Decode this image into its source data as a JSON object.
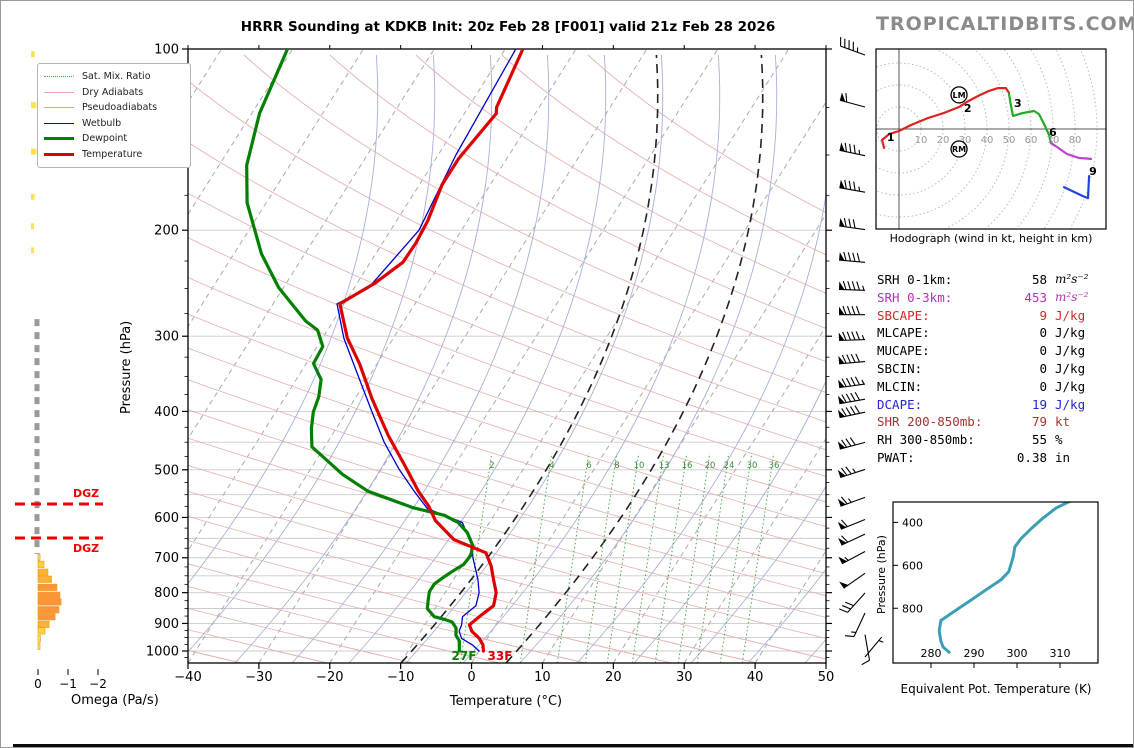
{
  "header": {
    "title": "HRRR Sounding at KDKB Init: 20z Feb 28 [F001] valid 21z Feb 28 2026",
    "watermark": "TROPICALTIDBITS.COM"
  },
  "legend": {
    "items": [
      {
        "label": "Sat. Mix. Ratio",
        "color": "#44aa44",
        "style": "dotted",
        "weight": 1
      },
      {
        "label": "Dry Adiabats",
        "color": "#e8a8a8",
        "style": "solid",
        "weight": 1
      },
      {
        "label": "Pseudoadiabats",
        "color": "#a8aedd",
        "style": "solid",
        "weight": 1
      },
      {
        "label": "Wetbulb",
        "color": "#0000cc",
        "style": "solid",
        "weight": 1.5
      },
      {
        "label": "Dewpoint",
        "color": "#008000",
        "style": "solid",
        "weight": 3.5
      },
      {
        "label": "Temperature",
        "color": "#dd0000",
        "style": "solid",
        "weight": 3.5
      }
    ]
  },
  "stats": {
    "rows": [
      {
        "label": "SRH 0-1km:",
        "value": "58",
        "unit": "m²s⁻²",
        "color": "#000000",
        "unit_italic": true
      },
      {
        "label": "SRH 0-3km:",
        "value": "453",
        "unit": "m²s⁻²",
        "color": "#b233b2",
        "unit_italic": true
      },
      {
        "label": "SBCAPE:",
        "value": "9",
        "unit": "J/kg",
        "color": "#d42727",
        "unit_italic": false
      },
      {
        "label": "MLCAPE:",
        "value": "0",
        "unit": "J/kg",
        "color": "#000000",
        "unit_italic": false
      },
      {
        "label": "MUCAPE:",
        "value": "0",
        "unit": "J/kg",
        "color": "#000000",
        "unit_italic": false
      },
      {
        "label": "SBCIN:",
        "value": "0",
        "unit": "J/kg",
        "color": "#000000",
        "unit_italic": false
      },
      {
        "label": "MLCIN:",
        "value": "0",
        "unit": "J/kg",
        "color": "#000000",
        "unit_italic": false
      },
      {
        "label": "DCAPE:",
        "value": "19",
        "unit": "J/kg",
        "color": "#2626cc",
        "unit_italic": false
      },
      {
        "label": "SHR 200-850mb:",
        "value": "79",
        "unit": "kt",
        "color": "#a23535",
        "unit_italic": false
      },
      {
        "label": "RH 300-850mb:",
        "value": "55",
        "unit": "%",
        "color": "#000000",
        "unit_italic": false
      },
      {
        "label": "PWAT:",
        "value": "0.38",
        "unit": "in",
        "color": "#000000",
        "unit_italic": false
      }
    ]
  },
  "chart_data": [
    {
      "id": "skewt",
      "type": "line",
      "title": "HRRR Sounding at KDKB Init: 20z Feb 28 [F001] valid 21z Feb 28 2026",
      "xlabel": "Temperature (°C)",
      "ylabel": "Pressure (hPa)",
      "xlim": [
        -40,
        50
      ],
      "x_ticks": [
        -40,
        -30,
        -20,
        -10,
        0,
        10,
        20,
        30,
        40,
        50
      ],
      "p_ticks": [
        100,
        200,
        300,
        400,
        500,
        600,
        700,
        800,
        900,
        1000
      ],
      "p_range": [
        100,
        1050
      ],
      "grid": true,
      "mixing_ratio_labels": [
        2,
        4,
        6,
        8,
        10,
        13,
        16,
        20,
        24,
        30,
        36
      ],
      "surface_temp_label": "33F",
      "surface_dewpoint_label": "27F",
      "series": [
        {
          "name": "Temperature",
          "color": "#dd0000",
          "width": 3.2,
          "points_p_T": [
            [
              100,
              -47.5
            ],
            [
              125,
              -46.0
            ],
            [
              128,
              -45.5
            ],
            [
              152,
              -46.8
            ],
            [
              168,
              -46.8
            ],
            [
              193,
              -45.6
            ],
            [
              210,
              -45.3
            ],
            [
              226,
              -45.4
            ],
            [
              245,
              -47.5
            ],
            [
              265,
              -50.6
            ],
            [
              302,
              -46.5
            ],
            [
              334,
              -42.4
            ],
            [
              381,
              -37.6
            ],
            [
              440,
              -31.9
            ],
            [
              492,
              -27.0
            ],
            [
              543,
              -22.8
            ],
            [
              575,
              -20.0
            ],
            [
              607,
              -17.8
            ],
            [
              653,
              -13.5
            ],
            [
              687,
              -7.8
            ],
            [
              722,
              -5.9
            ],
            [
              762,
              -4.3
            ],
            [
              800,
              -2.8
            ],
            [
              841,
              -2.0
            ],
            [
              872,
              -2.9
            ],
            [
              905,
              -3.7
            ],
            [
              927,
              -2.8
            ],
            [
              953,
              -1.1
            ],
            [
              977,
              0.0
            ],
            [
              1000,
              0.6
            ]
          ]
        },
        {
          "name": "Dewpoint",
          "color": "#008000",
          "width": 3.2,
          "points_p_T": [
            [
              100,
              -80.7
            ],
            [
              128,
              -78.9
            ],
            [
              156,
              -76.1
            ],
            [
              180,
              -72.7
            ],
            [
              219,
              -66.1
            ],
            [
              249,
              -60.7
            ],
            [
              283,
              -53.9
            ],
            [
              293,
              -51.4
            ],
            [
              312,
              -49.2
            ],
            [
              333,
              -49.0
            ],
            [
              354,
              -46.5
            ],
            [
              378,
              -45.3
            ],
            [
              401,
              -44.7
            ],
            [
              427,
              -43.5
            ],
            [
              458,
              -41.8
            ],
            [
              509,
              -35.0
            ],
            [
              543,
              -29.9
            ],
            [
              578,
              -22.1
            ],
            [
              595,
              -17.0
            ],
            [
              612,
              -14.4
            ],
            [
              636,
              -12.2
            ],
            [
              668,
              -10.3
            ],
            [
              694,
              -9.7
            ],
            [
              718,
              -9.9
            ],
            [
              740,
              -11.0
            ],
            [
              760,
              -11.8
            ],
            [
              774,
              -12.3
            ],
            [
              797,
              -12.3
            ],
            [
              820,
              -11.8
            ],
            [
              850,
              -11.1
            ],
            [
              877,
              -9.4
            ],
            [
              886,
              -7.7
            ],
            [
              895,
              -6.4
            ],
            [
              916,
              -5.3
            ],
            [
              941,
              -4.7
            ],
            [
              962,
              -3.7
            ],
            [
              1000,
              -2.8
            ]
          ]
        },
        {
          "name": "Wetbulb",
          "color": "#0000cc",
          "width": 1.3,
          "points_p_T": [
            [
              100,
              -48.5
            ],
            [
              150,
              -47.5
            ],
            [
              200,
              -46.0
            ],
            [
              250,
              -48.0
            ],
            [
              265,
              -51.0
            ],
            [
              302,
              -47.0
            ],
            [
              350,
              -41.5
            ],
            [
              400,
              -36.5
            ],
            [
              450,
              -32.0
            ],
            [
              500,
              -27.4
            ],
            [
              543,
              -23.4
            ],
            [
              580,
              -20.0
            ],
            [
              612,
              -13.8
            ],
            [
              650,
              -11.5
            ],
            [
              668,
              -10.4
            ],
            [
              700,
              -9.2
            ],
            [
              722,
              -8.2
            ],
            [
              762,
              -6.5
            ],
            [
              800,
              -5.2
            ],
            [
              841,
              -4.5
            ],
            [
              877,
              -5.4
            ],
            [
              905,
              -4.8
            ],
            [
              927,
              -4.6
            ],
            [
              953,
              -3.6
            ],
            [
              977,
              -1.5
            ],
            [
              1000,
              0.0
            ]
          ]
        }
      ],
      "wind_barbs_p_kt_dir": [
        [
          100,
          45,
          290
        ],
        [
          122,
          60,
          285
        ],
        [
          147,
          85,
          282
        ],
        [
          169,
          85,
          280
        ],
        [
          195,
          80,
          278
        ],
        [
          221,
          90,
          275
        ],
        [
          246,
          95,
          272
        ],
        [
          270,
          90,
          270
        ],
        [
          297,
          95,
          268
        ],
        [
          323,
          90,
          265
        ],
        [
          352,
          95,
          262
        ],
        [
          373,
          90,
          260
        ],
        [
          392,
          90,
          258
        ],
        [
          440,
          80,
          255
        ],
        [
          488,
          75,
          252
        ],
        [
          543,
          65,
          250
        ],
        [
          591,
          60,
          248
        ],
        [
          625,
          60,
          245
        ],
        [
          668,
          55,
          242
        ],
        [
          726,
          50,
          235
        ],
        [
          783,
          30,
          222
        ],
        [
          845,
          15,
          205
        ],
        [
          918,
          10,
          170
        ],
        [
          1000,
          5,
          40
        ]
      ]
    },
    {
      "id": "hodograph",
      "type": "line",
      "caption": "Hodograph (wind in kt, height in km)",
      "ring_interval_kt": 10,
      "ring_labels": [
        10,
        20,
        30,
        40,
        50,
        60,
        70,
        80
      ],
      "height_labels": [
        {
          "text": "1",
          "u": -5.5,
          "v": -3.6
        },
        {
          "text": "2",
          "u": 29.5,
          "v": 9.5
        },
        {
          "text": "3",
          "u": 52.3,
          "v": 11.8
        },
        {
          "text": "6",
          "u": 68.2,
          "v": -1.4
        },
        {
          "text": "9",
          "u": 86.4,
          "v": -19.1
        }
      ],
      "markers": [
        {
          "text": "LM",
          "u": 27.3,
          "v": 15.5
        },
        {
          "text": "RM",
          "u": 27.3,
          "v": -9.1
        }
      ],
      "segments": [
        {
          "km": "0-3",
          "color": "#dd2222",
          "points_uv": [
            [
              -6.8,
              -8.6
            ],
            [
              -7.7,
              -5.0
            ],
            [
              -4.5,
              -2.3
            ],
            [
              0,
              -0.9
            ],
            [
              5.5,
              1.8
            ],
            [
              13.2,
              5.0
            ],
            [
              20.5,
              7.3
            ],
            [
              27.3,
              10.0
            ],
            [
              30.9,
              12.3
            ],
            [
              35.9,
              15.0
            ],
            [
              40.9,
              17.3
            ],
            [
              45.0,
              18.6
            ],
            [
              48.6,
              18.6
            ],
            [
              50.0,
              16.4
            ]
          ]
        },
        {
          "km": "3-6",
          "color": "#22aa22",
          "points_uv": [
            [
              50.0,
              15.9
            ],
            [
              50.9,
              10.5
            ],
            [
              51.8,
              5.9
            ],
            [
              56.4,
              7.3
            ],
            [
              61.4,
              8.2
            ],
            [
              63.6,
              6.8
            ],
            [
              65.9,
              2.3
            ],
            [
              68.2,
              -2.7
            ],
            [
              69.1,
              -6.4
            ]
          ]
        },
        {
          "km": "6-9",
          "color": "#bb44cc",
          "points_uv": [
            [
              69.1,
              -6.4
            ],
            [
              71.8,
              -8.2
            ],
            [
              76.4,
              -11.4
            ],
            [
              81.8,
              -13.2
            ],
            [
              87.3,
              -13.6
            ]
          ]
        },
        {
          "km": "9-12",
          "color": "#2244dd",
          "points_uv": [
            [
              75.0,
              -26.4
            ],
            [
              83.6,
              -30.5
            ],
            [
              85.9,
              -31.4
            ],
            [
              86.4,
              -21.4
            ]
          ]
        }
      ]
    },
    {
      "id": "theta_e",
      "type": "line",
      "xlabel": "Equivalent Pot. Temperature (K)",
      "ylabel": "Pressure (hPa)",
      "x_ticks": [
        280,
        290,
        300,
        310
      ],
      "p_ticks": [
        400,
        600,
        800
      ],
      "p_range": [
        305,
        1055
      ],
      "color": "#3a9fb5",
      "points_p_K": [
        [
          1005,
          284.2
        ],
        [
          980,
          282.8
        ],
        [
          952,
          282.3
        ],
        [
          905,
          281.9
        ],
        [
          857,
          282.3
        ],
        [
          819,
          285.1
        ],
        [
          762,
          289.3
        ],
        [
          714,
          292.8
        ],
        [
          667,
          296.3
        ],
        [
          629,
          298.1
        ],
        [
          595,
          298.6
        ],
        [
          562,
          299.1
        ],
        [
          514,
          299.5
        ],
        [
          476,
          300.9
        ],
        [
          429,
          303.3
        ],
        [
          381,
          306.0
        ],
        [
          333,
          309.1
        ],
        [
          290,
          313.5
        ]
      ]
    },
    {
      "id": "omega",
      "type": "bar",
      "xlabel": "Omega (Pa/s)",
      "x_ticks": [
        0,
        -1,
        -2
      ],
      "dgz_label": "DGZ",
      "dgz_pressures": [
        570,
        649
      ],
      "near_zero_band_p": [
        281,
        690
      ],
      "bars_p_val": [
        [
          699,
          -0.05
        ],
        [
          718,
          -0.2
        ],
        [
          740,
          -0.33
        ],
        [
          760,
          -0.45
        ],
        [
          784,
          -0.63
        ],
        [
          808,
          -0.73
        ],
        [
          829,
          -0.77
        ],
        [
          854,
          -0.7
        ],
        [
          877,
          -0.57
        ],
        [
          903,
          -0.37
        ],
        [
          926,
          -0.23
        ],
        [
          954,
          -0.08
        ],
        [
          982,
          -0.03
        ]
      ],
      "upper_marks_p_val": [
        [
          102,
          -0.12
        ],
        [
          124,
          -0.18
        ],
        [
          148,
          -0.18
        ],
        [
          176,
          -0.12
        ],
        [
          197,
          -0.08
        ],
        [
          216,
          -0.05
        ]
      ]
    }
  ]
}
